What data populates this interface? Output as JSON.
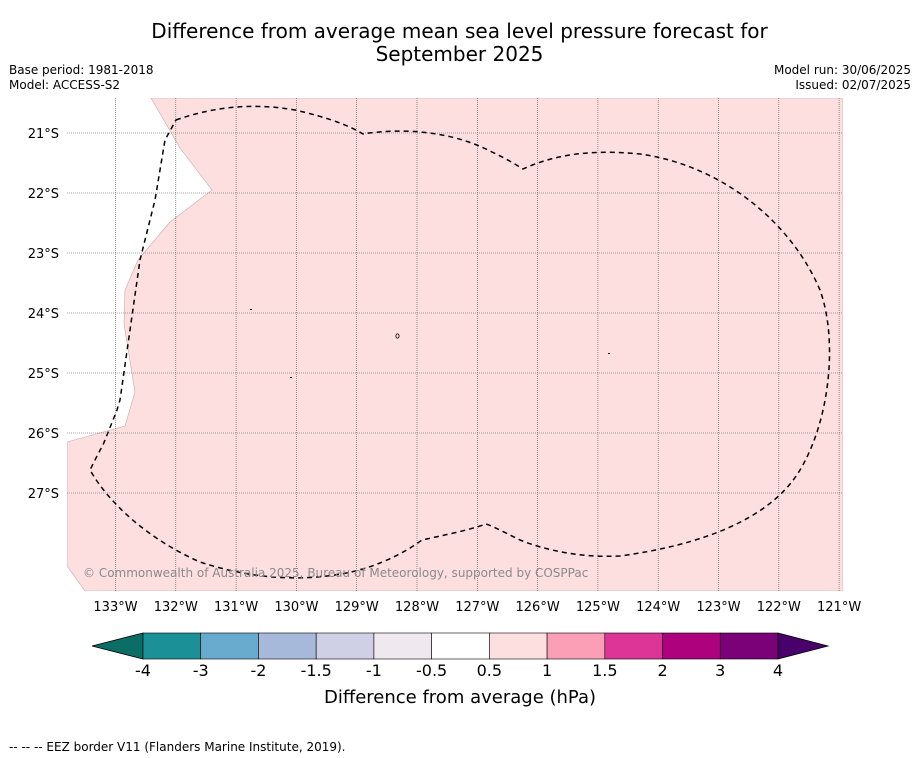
{
  "title_line1": "Difference from average mean sea level pressure forecast for",
  "title_line2": "September 2025",
  "meta": {
    "base_period": "Base period: 1981-2018",
    "model": "Model: ACCESS-S2",
    "model_run": "Model run: 30/06/2025",
    "issued": "Issued: 02/07/2025"
  },
  "map": {
    "lat_labels": [
      "21°S",
      "22°S",
      "23°S",
      "24°S",
      "25°S",
      "26°S",
      "27°S"
    ],
    "lon_labels": [
      "133°W",
      "132°W",
      "131°W",
      "130°W",
      "129°W",
      "128°W",
      "127°W",
      "126°W",
      "125°W",
      "124°W",
      "123°W",
      "122°W",
      "121°W"
    ],
    "copyright": "© Commonwealth of Australia 2025, Bureau of Meteorology, supported by COSPPac",
    "fill_category": "0.5 to 1",
    "fill_color": "#fddfdf",
    "eez_style": "dashed black"
  },
  "colorbar": {
    "ticks": [
      "-4",
      "-3",
      "-2",
      "-1.5",
      "-1",
      "-0.5",
      "0.5",
      "1",
      "1.5",
      "2",
      "3",
      "4"
    ],
    "colors": [
      "#0b6d66",
      "#1b9097",
      "#69aacf",
      "#a6b9da",
      "#cfd0e6",
      "#efe8ee",
      "#ffffff",
      "#fddfdf",
      "#fa9fb5",
      "#dd3497",
      "#ae017e",
      "#7a0177",
      "#49006a"
    ],
    "label": "Difference from average (hPa)"
  },
  "footer": "--  --  -- EEZ border V11 (Flanders Marine Institute, 2019)."
}
